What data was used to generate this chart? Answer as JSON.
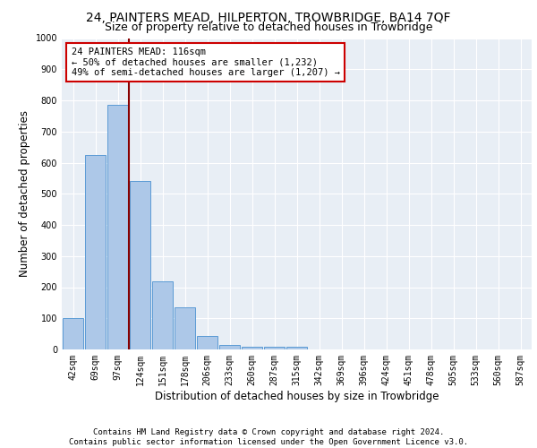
{
  "title_line1": "24, PAINTERS MEAD, HILPERTON, TROWBRIDGE, BA14 7QF",
  "title_line2": "Size of property relative to detached houses in Trowbridge",
  "xlabel": "Distribution of detached houses by size in Trowbridge",
  "ylabel": "Number of detached properties",
  "categories": [
    "42sqm",
    "69sqm",
    "97sqm",
    "124sqm",
    "151sqm",
    "178sqm",
    "206sqm",
    "233sqm",
    "260sqm",
    "287sqm",
    "315sqm",
    "342sqm",
    "369sqm",
    "396sqm",
    "424sqm",
    "451sqm",
    "478sqm",
    "505sqm",
    "533sqm",
    "560sqm",
    "587sqm"
  ],
  "values": [
    100,
    625,
    785,
    540,
    220,
    135,
    42,
    15,
    10,
    10,
    8,
    0,
    0,
    0,
    0,
    0,
    0,
    0,
    0,
    0,
    0
  ],
  "bar_color": "#adc8e8",
  "bar_edge_color": "#5b9bd5",
  "vline_color": "#880000",
  "annotation_box_text": "24 PAINTERS MEAD: 116sqm\n← 50% of detached houses are smaller (1,232)\n49% of semi-detached houses are larger (1,207) →",
  "annotation_box_color": "#cc0000",
  "annotation_box_facecolor": "white",
  "ylim": [
    0,
    1000
  ],
  "yticks": [
    0,
    100,
    200,
    300,
    400,
    500,
    600,
    700,
    800,
    900,
    1000
  ],
  "background_color": "#e8eef5",
  "footer_text": "Contains HM Land Registry data © Crown copyright and database right 2024.\nContains public sector information licensed under the Open Government Licence v3.0.",
  "title_fontsize": 10,
  "subtitle_fontsize": 9,
  "xlabel_fontsize": 8.5,
  "ylabel_fontsize": 8.5,
  "tick_fontsize": 7,
  "footer_fontsize": 6.5,
  "annot_fontsize": 7.5
}
